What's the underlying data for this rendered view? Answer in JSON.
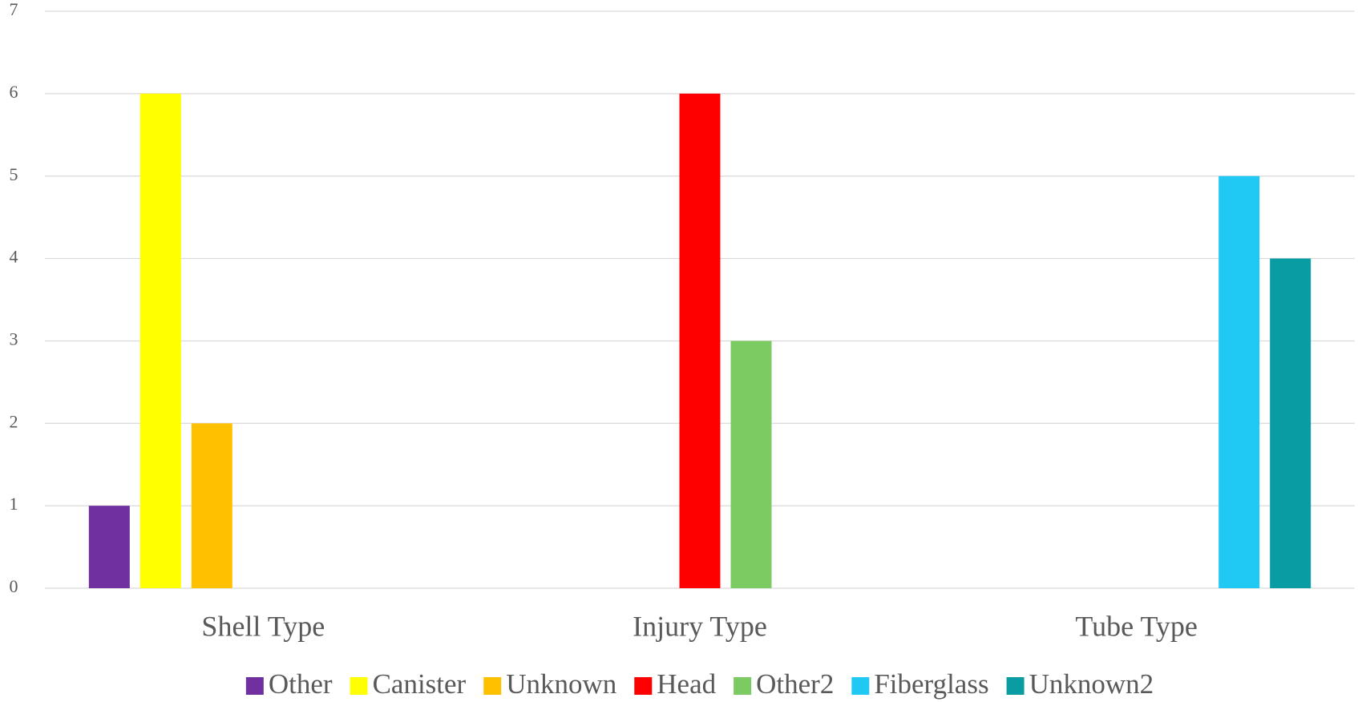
{
  "chart_data": {
    "type": "bar",
    "categories": [
      "Shell Type",
      "Injury Type",
      "Tube Type"
    ],
    "series": [
      {
        "name": "Other",
        "color": "#7030a0",
        "values": [
          1,
          null,
          null
        ]
      },
      {
        "name": "Canister",
        "color": "#ffff00",
        "values": [
          6,
          null,
          null
        ]
      },
      {
        "name": "Unknown",
        "color": "#ffc000",
        "values": [
          2,
          null,
          null
        ]
      },
      {
        "name": "Head",
        "color": "#ff0000",
        "values": [
          null,
          6,
          null
        ]
      },
      {
        "name": "Other2",
        "color": "#7cca62",
        "values": [
          null,
          3,
          null
        ]
      },
      {
        "name": "Fiberglass",
        "color": "#20c8f4",
        "values": [
          null,
          null,
          5
        ]
      },
      {
        "name": "Unknown2",
        "color": "#0a9ca3",
        "values": [
          null,
          null,
          4
        ]
      }
    ],
    "ylim": [
      0,
      7
    ],
    "yticks": [
      0,
      1,
      2,
      3,
      4,
      5,
      6,
      7
    ],
    "grid": true,
    "legend": "bottom"
  }
}
